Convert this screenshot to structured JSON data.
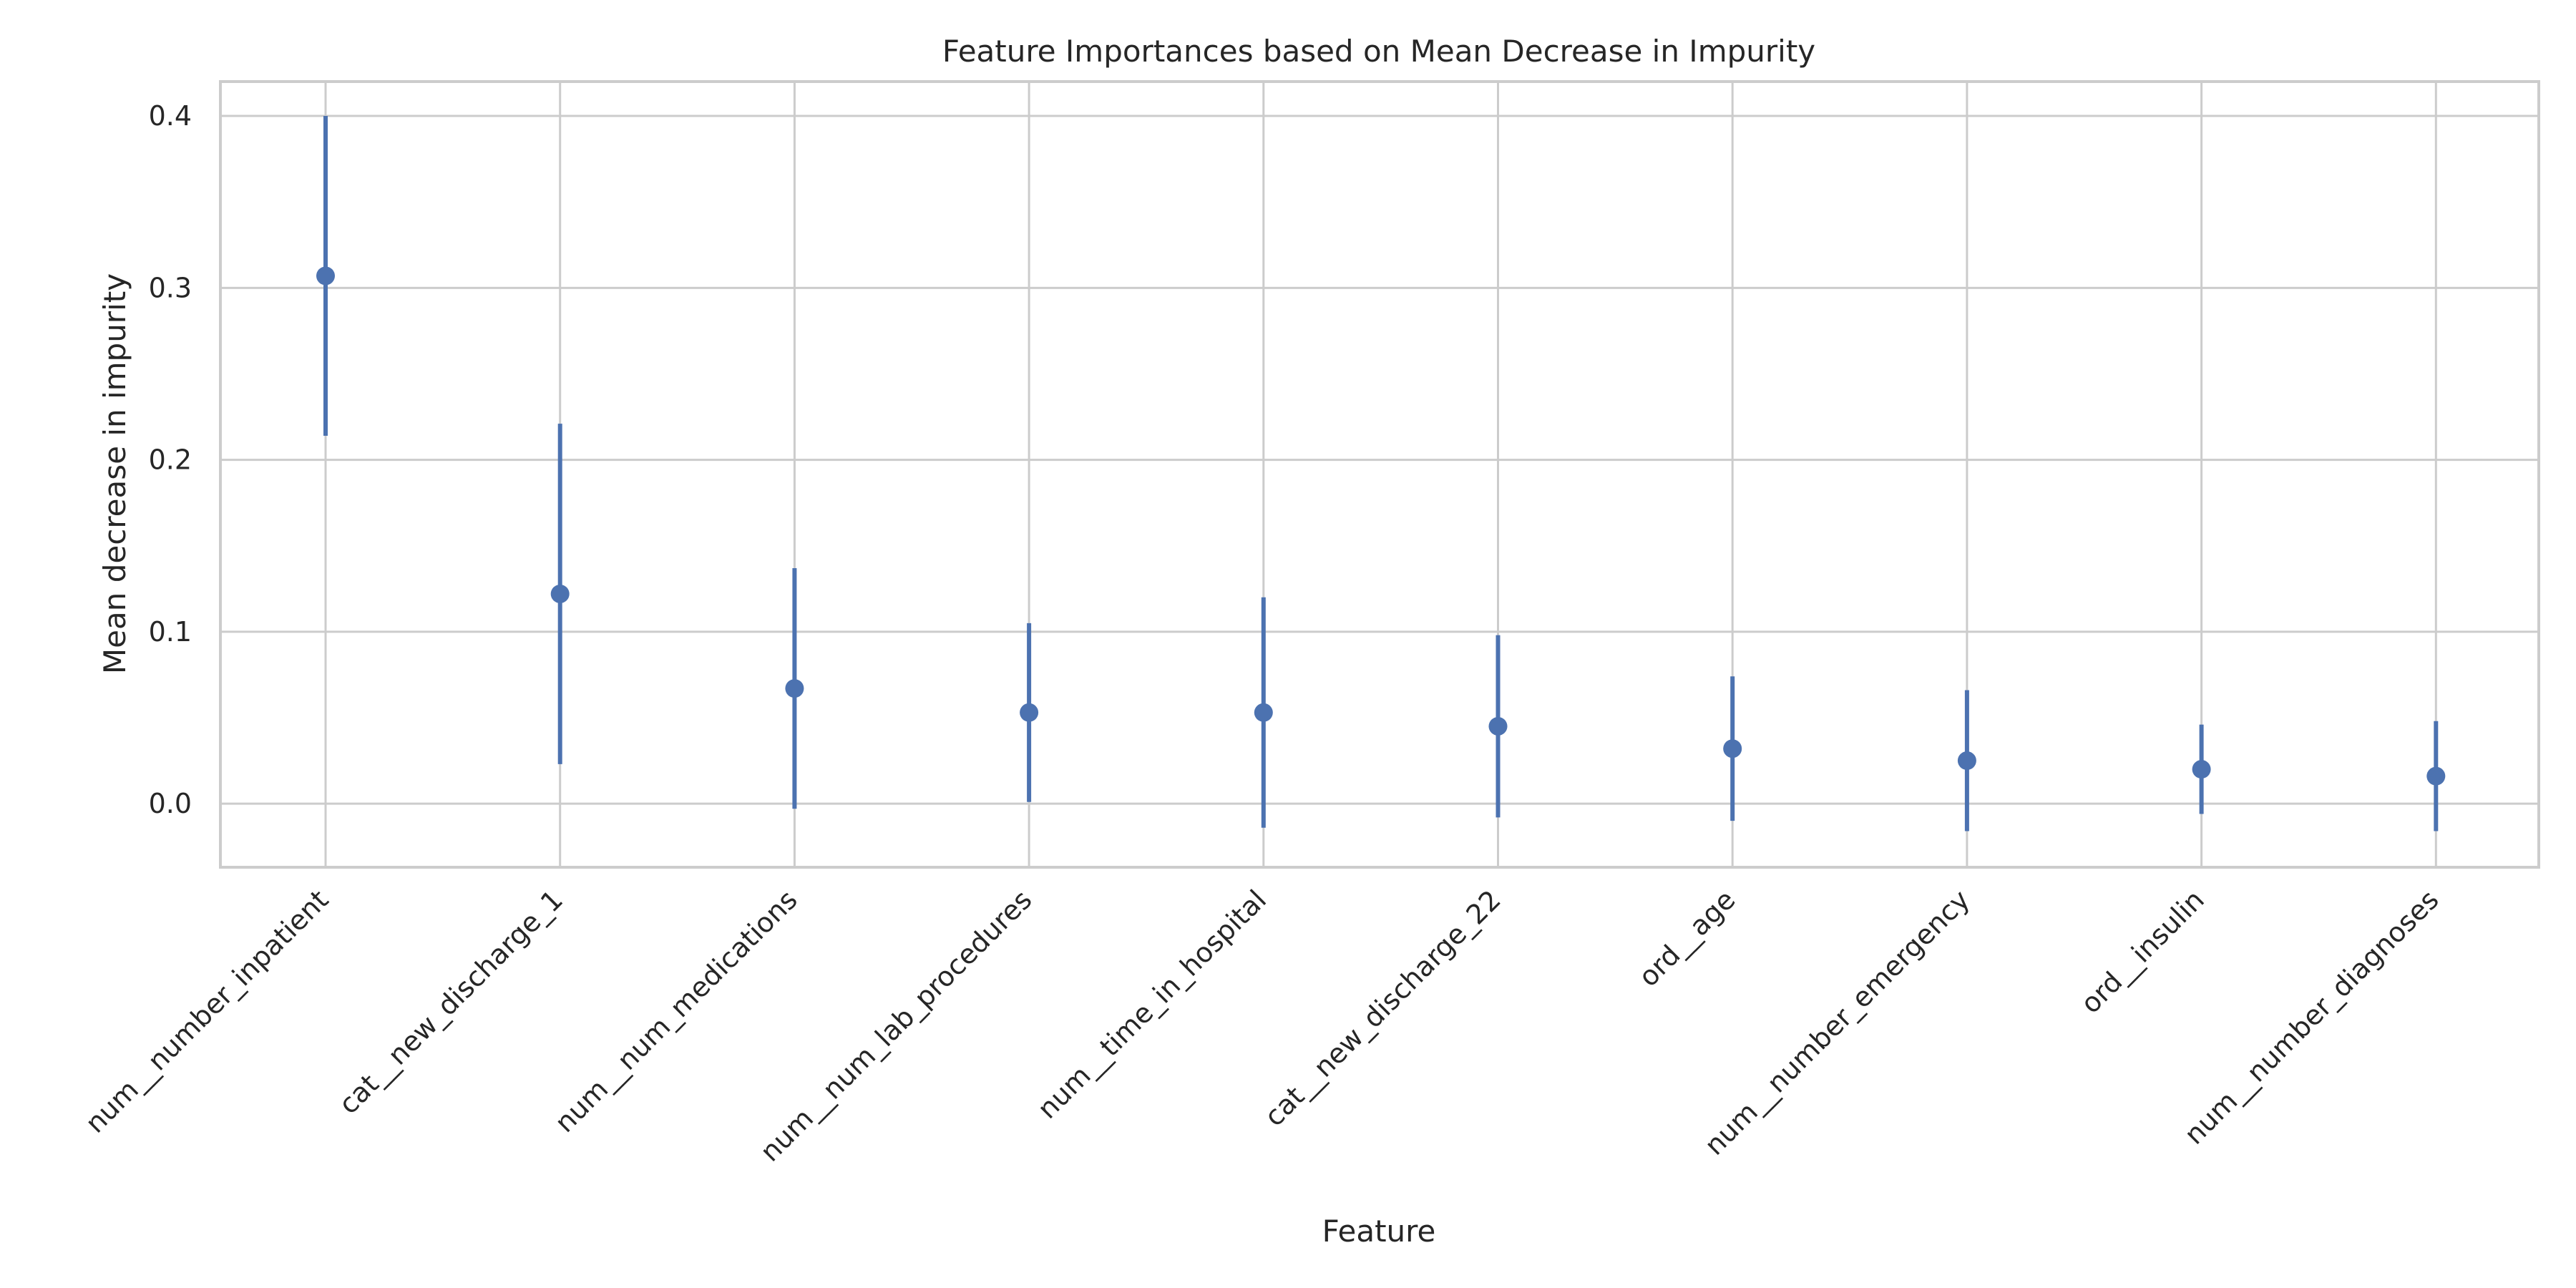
{
  "chart_data": {
    "type": "scatter",
    "title": "Feature Importances based on Mean Decrease in Impurity",
    "xlabel": "Feature",
    "ylabel": "Mean decrease in impurity",
    "categories": [
      "num__number_inpatient",
      "cat__new_discharge_1",
      "num__num_medications",
      "num__num_lab_procedures",
      "num__time_in_hospital",
      "cat__new_discharge_22",
      "ord__age",
      "num__number_emergency",
      "ord__insulin",
      "num__number_diagnoses"
    ],
    "values": [
      0.307,
      0.122,
      0.067,
      0.053,
      0.053,
      0.045,
      0.032,
      0.025,
      0.02,
      0.016
    ],
    "error": [
      0.093,
      0.099,
      0.07,
      0.052,
      0.067,
      0.053,
      0.042,
      0.041,
      0.026,
      0.032
    ],
    "ylim": [
      -0.037,
      0.42
    ],
    "yticks": [
      0.0,
      0.1,
      0.2,
      0.3,
      0.4
    ],
    "ytick_labels": [
      "0.0",
      "0.1",
      "0.2",
      "0.3",
      "0.4"
    ],
    "grid": true,
    "legend": "none",
    "marker_color": "#4c72b0"
  }
}
